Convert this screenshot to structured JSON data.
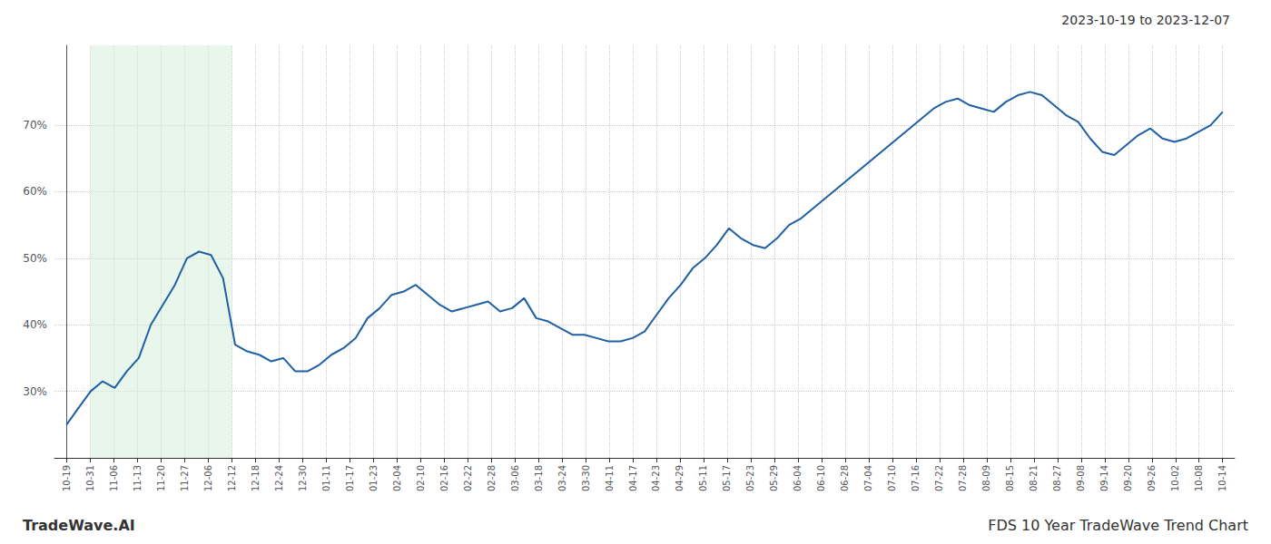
{
  "chart_data": {
    "type": "line",
    "title": "FDS 10 Year TradeWave Trend Chart",
    "subtitle": "2023-10-19 to 2023-12-07",
    "annotations": [
      "TradeWave.AI"
    ],
    "color": "#1f5fa6",
    "grid": true,
    "shade": {
      "range": [
        1.95918367,
        13.71428571
      ],
      "color": "#d4edda"
    },
    "xlim": [
      -1,
      97
    ],
    "xticks": [
      {
        "value": 0,
        "label": "10-19"
      },
      {
        "value": 1.95918367,
        "label": "10-31"
      },
      {
        "value": 3.91836735,
        "label": "11-06"
      },
      {
        "value": 5.87755102,
        "label": "11-13"
      },
      {
        "value": 7.83673469,
        "label": "11-20"
      },
      {
        "value": 9.79591837,
        "label": "11-27"
      },
      {
        "value": 11.75510204,
        "label": "12-06"
      },
      {
        "value": 13.71428571,
        "label": "12-12"
      },
      {
        "value": 15.67346939,
        "label": "12-18"
      },
      {
        "value": 17.63265306,
        "label": "12-24"
      },
      {
        "value": 19.59183673,
        "label": "12-30"
      },
      {
        "value": 21.55102041,
        "label": "01-11"
      },
      {
        "value": 23.51020408,
        "label": "01-17"
      },
      {
        "value": 25.46938776,
        "label": "01-23"
      },
      {
        "value": 27.42857143,
        "label": "02-04"
      },
      {
        "value": 29.3877551,
        "label": "02-10"
      },
      {
        "value": 31.34693878,
        "label": "02-16"
      },
      {
        "value": 33.30612245,
        "label": "02-22"
      },
      {
        "value": 35.26530612,
        "label": "02-28"
      },
      {
        "value": 37.2244898,
        "label": "03-06"
      },
      {
        "value": 39.18367347,
        "label": "03-18"
      },
      {
        "value": 41.14285714,
        "label": "03-24"
      },
      {
        "value": 43.10204082,
        "label": "03-30"
      },
      {
        "value": 45.06122449,
        "label": "04-11"
      },
      {
        "value": 47.02040816,
        "label": "04-17"
      },
      {
        "value": 48.97959184,
        "label": "04-23"
      },
      {
        "value": 50.93877551,
        "label": "04-29"
      },
      {
        "value": 52.89795918,
        "label": "05-11"
      },
      {
        "value": 54.85714286,
        "label": "05-17"
      },
      {
        "value": 56.81632653,
        "label": "05-23"
      },
      {
        "value": 58.7755102,
        "label": "05-29"
      },
      {
        "value": 60.73469388,
        "label": "06-04"
      },
      {
        "value": 62.69387755,
        "label": "06-10"
      },
      {
        "value": 64.65306122,
        "label": "06-28"
      },
      {
        "value": 66.6122449,
        "label": "07-04"
      },
      {
        "value": 68.57142857,
        "label": "07-10"
      },
      {
        "value": 70.53061224,
        "label": "07-16"
      },
      {
        "value": 72.48979592,
        "label": "07-22"
      },
      {
        "value": 74.44897959,
        "label": "07-28"
      },
      {
        "value": 76.40816327,
        "label": "08-09"
      },
      {
        "value": 78.36734694,
        "label": "08-15"
      },
      {
        "value": 80.32653061,
        "label": "08-21"
      },
      {
        "value": 82.28571429,
        "label": "08-27"
      },
      {
        "value": 84.24489796,
        "label": "09-08"
      },
      {
        "value": 86.20408163,
        "label": "09-14"
      },
      {
        "value": 88.16326531,
        "label": "09-20"
      },
      {
        "value": 90.12244898,
        "label": "09-26"
      },
      {
        "value": 92.08163265,
        "label": "10-02"
      },
      {
        "value": 94.04081633,
        "label": "10-08"
      },
      {
        "value": 96,
        "label": "10-14"
      }
    ],
    "ylim": [
      20,
      82
    ],
    "yticks": [
      {
        "value": 30,
        "label": "30%"
      },
      {
        "value": 40,
        "label": "40%"
      },
      {
        "value": 50,
        "label": "50%"
      },
      {
        "value": 60,
        "label": "60%"
      },
      {
        "value": 70,
        "label": "70%"
      }
    ],
    "x": [
      0,
      1,
      2,
      3,
      4,
      5,
      6,
      7,
      8,
      9,
      10,
      11,
      12,
      13,
      14,
      15,
      16,
      17,
      18,
      19,
      20,
      21,
      22,
      23,
      24,
      25,
      26,
      27,
      28,
      29,
      30,
      31,
      32,
      33,
      34,
      35,
      36,
      37,
      38,
      39,
      40,
      41,
      42,
      43,
      44,
      45,
      46,
      47,
      48,
      49,
      50,
      51,
      52,
      53,
      54,
      55,
      56,
      57,
      58,
      59,
      60,
      61,
      62,
      63,
      64,
      65,
      66,
      67,
      68,
      69,
      70,
      71,
      72,
      73,
      74,
      75,
      76,
      77,
      78,
      79,
      80,
      81,
      82,
      83,
      84,
      85,
      86,
      87,
      88,
      89,
      90,
      91,
      92,
      93,
      94,
      95,
      96
    ],
    "values": [
      25.0,
      27.5,
      30.0,
      31.5,
      30.5,
      33.0,
      35.0,
      40.0,
      43.0,
      46.0,
      50.0,
      51.0,
      50.5,
      47.0,
      37.0,
      36.0,
      35.5,
      34.5,
      35.0,
      33.0,
      33.0,
      34.0,
      35.5,
      36.5,
      38.0,
      41.0,
      42.5,
      44.5,
      45.0,
      46.0,
      44.5,
      43.0,
      42.0,
      42.5,
      43.0,
      43.5,
      42.0,
      42.5,
      44.0,
      41.0,
      40.5,
      39.5,
      38.5,
      38.5,
      38.0,
      37.5,
      37.5,
      38.0,
      39.0,
      41.5,
      44.0,
      46.0,
      48.5,
      50.0,
      52.0,
      54.5,
      53.0,
      52.0,
      51.5,
      53.0,
      55.0,
      56.0,
      57.5,
      59.0,
      60.5,
      62.0,
      63.5,
      65.0,
      66.5,
      68.0,
      69.5,
      71.0,
      72.5,
      73.5,
      74.0,
      73.0,
      72.5,
      72.0,
      73.5,
      74.5,
      75.0,
      74.5,
      73.0,
      71.5,
      70.5,
      68.0,
      66.0,
      65.5,
      67.0,
      68.5,
      69.5,
      68.0,
      67.5,
      68.0,
      69.0,
      70.0,
      72.0
    ]
  }
}
